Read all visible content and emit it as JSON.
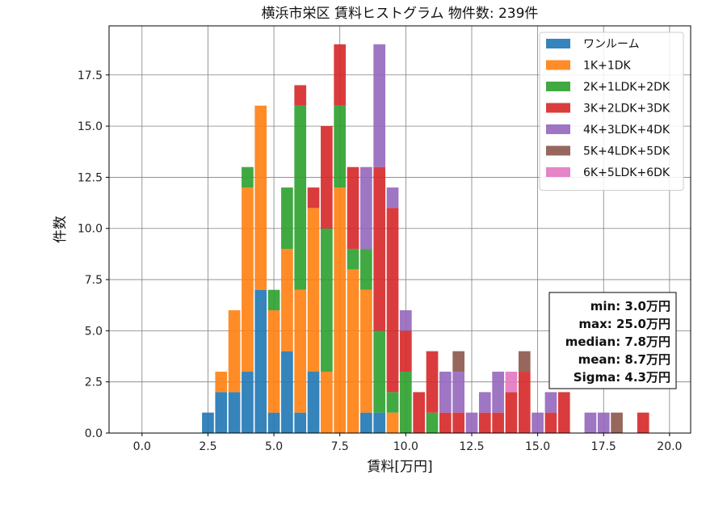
{
  "chart_data": {
    "type": "bar",
    "stacked": true,
    "title": "横浜市栄区 賃料ヒストグラム 物件数: 239件",
    "xlabel": "賃料[万円]",
    "ylabel": "件数",
    "xlim": [
      -1.25,
      20.8
    ],
    "ylim": [
      0,
      19.9
    ],
    "x_ticks": [
      0,
      2.5,
      5,
      7.5,
      10,
      12.5,
      15,
      17.5,
      20
    ],
    "x_tick_labels": [
      "0.0",
      "2.5",
      "5.0",
      "7.5",
      "10.0",
      "12.5",
      "15.0",
      "17.5",
      "20.0"
    ],
    "y_ticks": [
      0,
      2.5,
      5,
      7.5,
      10,
      12.5,
      15,
      17.5
    ],
    "y_tick_labels": [
      "0.0",
      "2.5",
      "5.0",
      "7.5",
      "10.0",
      "12.5",
      "15.0",
      "17.5"
    ],
    "grid": true,
    "legend_position": "top-right",
    "bin_width": 0.5,
    "x": [
      2.5,
      3,
      3.5,
      4,
      4.5,
      5,
      5.5,
      6,
      6.5,
      7,
      7.5,
      8,
      8.5,
      9,
      9.5,
      10,
      10.5,
      11,
      11.5,
      12,
      12.5,
      13,
      13.5,
      14,
      14.5,
      15,
      15.5,
      16,
      16.5,
      17,
      17.5,
      18,
      18.5,
      19
    ],
    "series": [
      {
        "name": "ワンルーム",
        "color": "#1f77b4",
        "values": [
          1,
          2,
          2,
          3,
          7,
          1,
          4,
          1,
          3,
          0,
          0,
          0,
          1,
          1,
          0,
          0,
          0,
          0,
          0,
          0,
          0,
          0,
          0,
          0,
          0,
          0,
          0,
          0,
          0,
          0,
          0,
          0,
          0,
          0
        ]
      },
      {
        "name": "1K+1DK",
        "color": "#ff7f0e",
        "values": [
          0,
          1,
          4,
          9,
          9,
          5,
          5,
          6,
          8,
          3,
          12,
          8,
          6,
          0,
          1,
          0,
          0,
          0,
          0,
          0,
          0,
          0,
          0,
          0,
          0,
          0,
          0,
          0,
          0,
          0,
          0,
          0,
          0,
          0
        ]
      },
      {
        "name": "2K+1LDK+2DK",
        "color": "#2ca02c",
        "values": [
          0,
          0,
          0,
          1,
          0,
          1,
          3,
          9,
          0,
          7,
          4,
          1,
          2,
          4,
          1,
          3,
          0,
          1,
          0,
          0,
          0,
          0,
          0,
          0,
          0,
          0,
          0,
          0,
          0,
          0,
          0,
          0,
          0,
          0
        ]
      },
      {
        "name": "3K+2LDK+3DK",
        "color": "#d62728",
        "values": [
          0,
          0,
          0,
          0,
          0,
          0,
          0,
          1,
          1,
          5,
          3,
          4,
          0,
          8,
          9,
          2,
          2,
          3,
          1,
          1,
          0,
          1,
          1,
          2,
          3,
          0,
          1,
          2,
          0,
          0,
          0,
          0,
          0,
          1
        ]
      },
      {
        "name": "4K+3LDK+4DK",
        "color": "#9467bd",
        "values": [
          0,
          0,
          0,
          0,
          0,
          0,
          0,
          0,
          0,
          0,
          0,
          0,
          4,
          6,
          1,
          1,
          0,
          0,
          2,
          2,
          1,
          1,
          2,
          0,
          0,
          1,
          1,
          0,
          0,
          1,
          1,
          0,
          0,
          0
        ]
      },
      {
        "name": "5K+4LDK+5DK",
        "color": "#8c564b",
        "values": [
          0,
          0,
          0,
          0,
          0,
          0,
          0,
          0,
          0,
          0,
          0,
          0,
          0,
          0,
          0,
          0,
          0,
          0,
          0,
          1,
          0,
          0,
          0,
          0,
          1,
          0,
          0,
          0,
          0,
          0,
          0,
          1,
          0,
          0
        ]
      },
      {
        "name": "6K+5LDK+6DK",
        "color": "#e377c2",
        "values": [
          0,
          0,
          0,
          0,
          0,
          0,
          0,
          0,
          0,
          0,
          0,
          0,
          0,
          0,
          0,
          0,
          0,
          0,
          0,
          0,
          0,
          0,
          0,
          1,
          0,
          0,
          0,
          0,
          0,
          0,
          0,
          0,
          0,
          0
        ]
      }
    ],
    "stats_box": [
      "min: 3.0万円",
      "max: 25.0万円",
      "median: 7.8万円",
      "mean: 8.7万円",
      "Sigma: 4.3万円"
    ]
  }
}
